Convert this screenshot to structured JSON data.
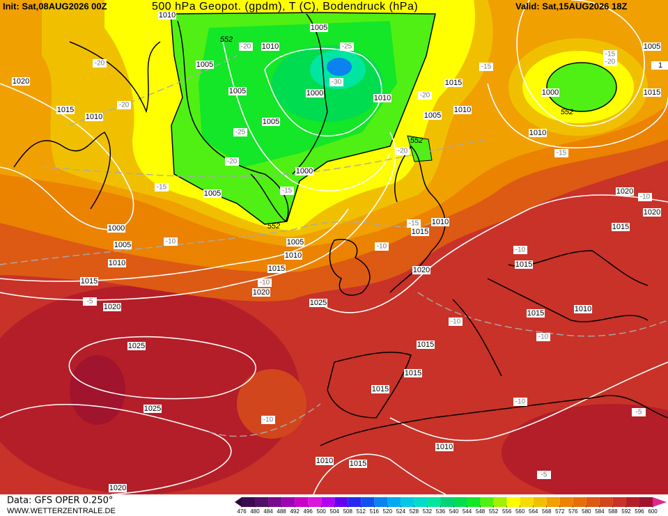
{
  "header": {
    "init": "Init: Sat,08AUG2026 00Z",
    "title": "500 hPa Geopot. (gpdm), T (C), Bodendruck (hPa)",
    "valid": "Valid: Sat,15AUG2026 18Z"
  },
  "footer": {
    "data": "Data: GFS OPER 0.250°",
    "site": "WWW.WETTERZENTRALE.DE"
  },
  "colorbar": {
    "ticks": [
      476,
      480,
      484,
      488,
      492,
      496,
      500,
      504,
      508,
      512,
      516,
      520,
      524,
      528,
      532,
      536,
      540,
      544,
      548,
      552,
      556,
      560,
      564,
      568,
      572,
      576,
      580,
      584,
      588,
      592,
      596,
      600
    ],
    "colors": [
      "#3c0a50",
      "#501064",
      "#780a8c",
      "#a000b4",
      "#c800c8",
      "#dc14dc",
      "#b400f0",
      "#6400f0",
      "#2828f0",
      "#1450f0",
      "#0a82f0",
      "#00aaf0",
      "#00c8e6",
      "#00dcc8",
      "#00e6a0",
      "#00d278",
      "#00dc50",
      "#14e628",
      "#50f014",
      "#a0f000",
      "#ffff00",
      "#f5dc00",
      "#f0c000",
      "#f0a000",
      "#eb8200",
      "#e66e0a",
      "#dc5a14",
      "#d2461e",
      "#c83228",
      "#b41e28",
      "#a0142d"
    ]
  },
  "isobar_labels": [
    "1010",
    "1005",
    "1010",
    "1005",
    "1020",
    "1005",
    "1000",
    "1010",
    "1015",
    "1010",
    "1005",
    "1015",
    "1005",
    "1010",
    "1000",
    "1010",
    "1005",
    "1015",
    "1",
    "1000",
    "1005",
    "1000",
    "1005",
    "1010",
    "1015",
    "1005",
    "1010",
    "1010",
    "1015",
    "1020",
    "1015",
    "1020",
    "1020",
    "1015",
    "1015",
    "1020",
    "1025",
    "1020",
    "1010",
    "1015",
    "1025",
    "1015",
    "1015",
    "1015",
    "1025",
    "1010",
    "1010",
    "1015",
    "1020"
  ],
  "temperature_labels": [
    "-20",
    "-25",
    "-20",
    "-30",
    "-20",
    "-15",
    "-15",
    "-20",
    "-20",
    "-25",
    "-20",
    "-20",
    "-15",
    "-15",
    "-15",
    "-10",
    "-10",
    "-15",
    "-10",
    "-10",
    "-10",
    "-5",
    "-10",
    "-10",
    "-10",
    "-10",
    "-5",
    "-5"
  ],
  "geopotential_labels": [
    "552",
    "552",
    "552",
    "552"
  ]
}
